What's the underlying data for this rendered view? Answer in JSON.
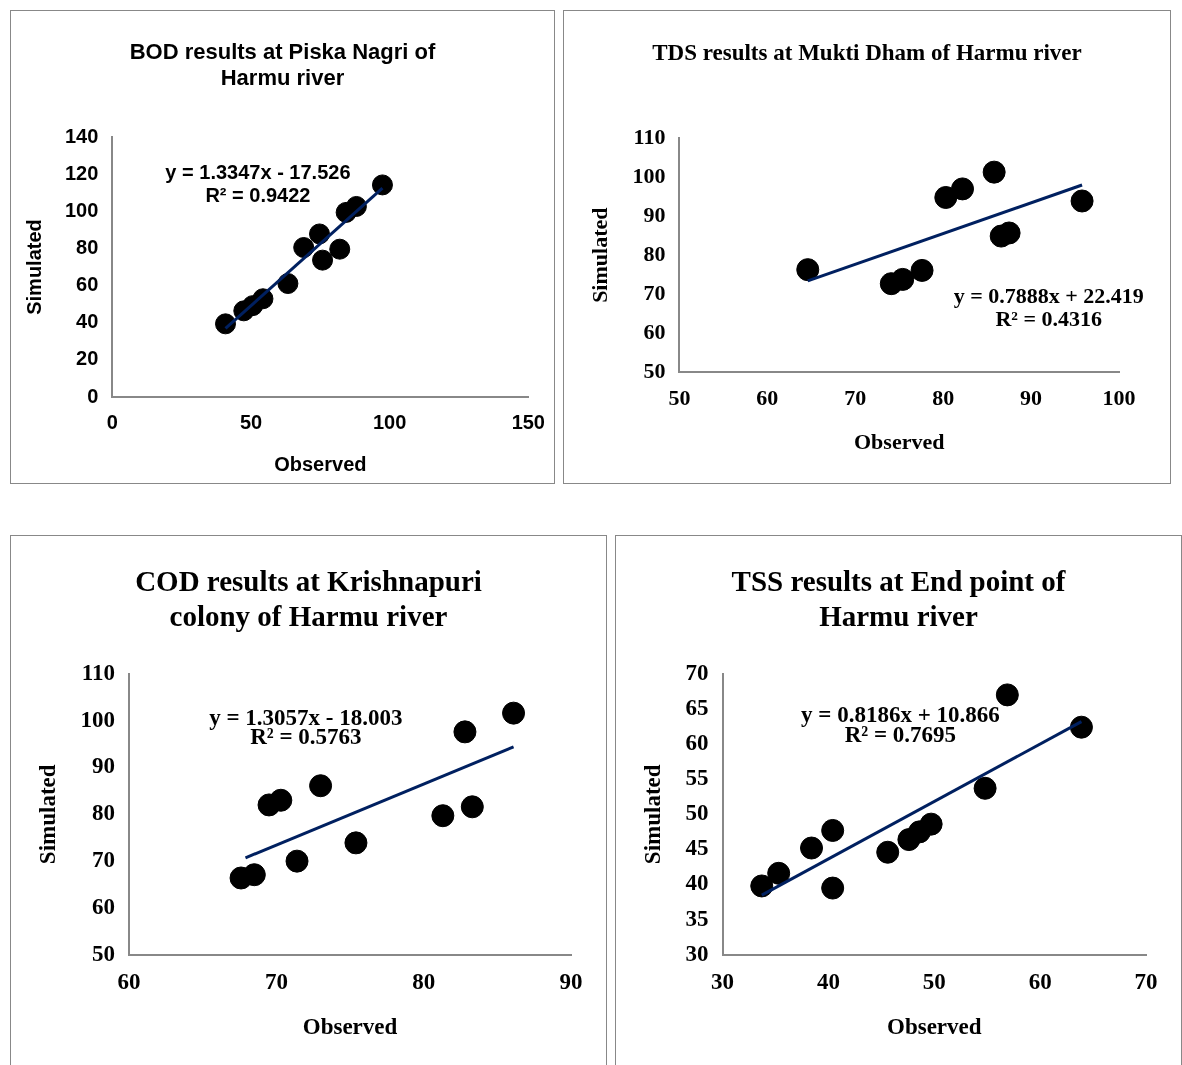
{
  "chart_data": [
    {
      "type": "scatter",
      "title": "BOD results at Piska Nagri of Harmu river",
      "xlabel": "Observed",
      "ylabel": "Simulated",
      "annotations": [
        "y = 1.3347x - 17.526",
        "R² = 0.9422"
      ],
      "xlim": [
        0,
        150
      ],
      "xticks": [
        0,
        50,
        100,
        150
      ],
      "ylim": [
        0,
        140
      ],
      "yticks": [
        0,
        20,
        40,
        60,
        80,
        100,
        120,
        140
      ],
      "grid": false,
      "legend": false,
      "series": [
        {
          "type": "scatter",
          "marker": "circle",
          "color": "#000000",
          "x": [
            40.8,
            47.4,
            50.6,
            54.3,
            63.3,
            69,
            74.7,
            75.8,
            82,
            84.3,
            88,
            97.4
          ],
          "values": [
            39.4,
            46.4,
            49.2,
            52.9,
            61.1,
            80.5,
            87.8,
            73.7,
            79.6,
            99.4,
            102.6,
            114.2
          ]
        },
        {
          "type": "line",
          "marker": "none",
          "color": "#002060",
          "x": [
            40.8,
            97.4
          ],
          "values": [
            36.9,
            112.5
          ]
        }
      ]
    },
    {
      "type": "scatter",
      "title": "TDS results at Mukti Dham of Harmu river",
      "xlabel": "Observed",
      "ylabel": "Simulated",
      "annotations": [
        "y = 0.7888x + 22.419",
        "R² = 0.4316"
      ],
      "xlim": [
        50,
        100
      ],
      "xticks": [
        50,
        60,
        70,
        80,
        90,
        100
      ],
      "ylim": [
        50,
        110
      ],
      "yticks": [
        50,
        60,
        70,
        80,
        90,
        100,
        110
      ],
      "grid": false,
      "legend": false,
      "series": [
        {
          "type": "scatter",
          "marker": "circle",
          "color": "#000000",
          "x": [
            64.6,
            74.1,
            75.4,
            77.6,
            80.3,
            82.2,
            85.8,
            86.6,
            87.5,
            95.8
          ],
          "values": [
            76.3,
            72.7,
            73.8,
            76.1,
            94.8,
            97.0,
            101.3,
            84.9,
            85.7,
            93.9
          ]
        },
        {
          "type": "line",
          "marker": "none",
          "color": "#002060",
          "x": [
            64.6,
            95.8
          ],
          "values": [
            73.4,
            98.0
          ]
        }
      ]
    },
    {
      "type": "scatter",
      "title": "COD results at Krishnapuri colony of Harmu river",
      "xlabel": "Observed",
      "ylabel": "Simulated",
      "annotations": [
        "y = 1.3057x - 18.003",
        "R² = 0.5763"
      ],
      "xlim": [
        60,
        90
      ],
      "xticks": [
        60,
        70,
        80,
        90
      ],
      "ylim": [
        50,
        110
      ],
      "yticks": [
        50,
        60,
        70,
        80,
        90,
        100,
        110
      ],
      "grid": false,
      "legend": false,
      "series": [
        {
          "type": "scatter",
          "marker": "circle",
          "color": "#000000",
          "x": [
            67.6,
            68.5,
            69.5,
            70.3,
            71.4,
            73.0,
            75.4,
            81.3,
            82.8,
            83.3,
            86.1
          ],
          "values": [
            66.4,
            67.1,
            82.0,
            83.0,
            70.0,
            86.1,
            73.9,
            79.7,
            97.6,
            81.6,
            101.6
          ]
        },
        {
          "type": "line",
          "marker": "none",
          "color": "#002060",
          "x": [
            67.9,
            86.1
          ],
          "values": [
            70.7,
            94.4
          ]
        }
      ]
    },
    {
      "type": "scatter",
      "title": "TSS results at End point of Harmu river",
      "xlabel": "Observed",
      "ylabel": "Simulated",
      "annotations": [
        "y = 0.8186x + 10.866",
        "R² = 0.7695"
      ],
      "xlim": [
        30,
        70
      ],
      "xticks": [
        30,
        40,
        50,
        60,
        70
      ],
      "ylim": [
        30,
        70
      ],
      "yticks": [
        30,
        35,
        40,
        45,
        50,
        55,
        60,
        65,
        70
      ],
      "grid": false,
      "legend": false,
      "series": [
        {
          "type": "scatter",
          "marker": "circle",
          "color": "#000000",
          "x": [
            33.7,
            35.3,
            38.4,
            40.4,
            40.4,
            45.6,
            47.6,
            48.6,
            49.7,
            54.8,
            56.9,
            63.9
          ],
          "values": [
            39.8,
            41.6,
            45.2,
            39.5,
            47.7,
            44.6,
            46.4,
            47.5,
            48.6,
            53.7,
            67.0,
            62.4
          ]
        },
        {
          "type": "line",
          "marker": "none",
          "color": "#002060",
          "x": [
            33.7,
            63.9
          ],
          "values": [
            38.5,
            63.2
          ]
        }
      ]
    }
  ]
}
